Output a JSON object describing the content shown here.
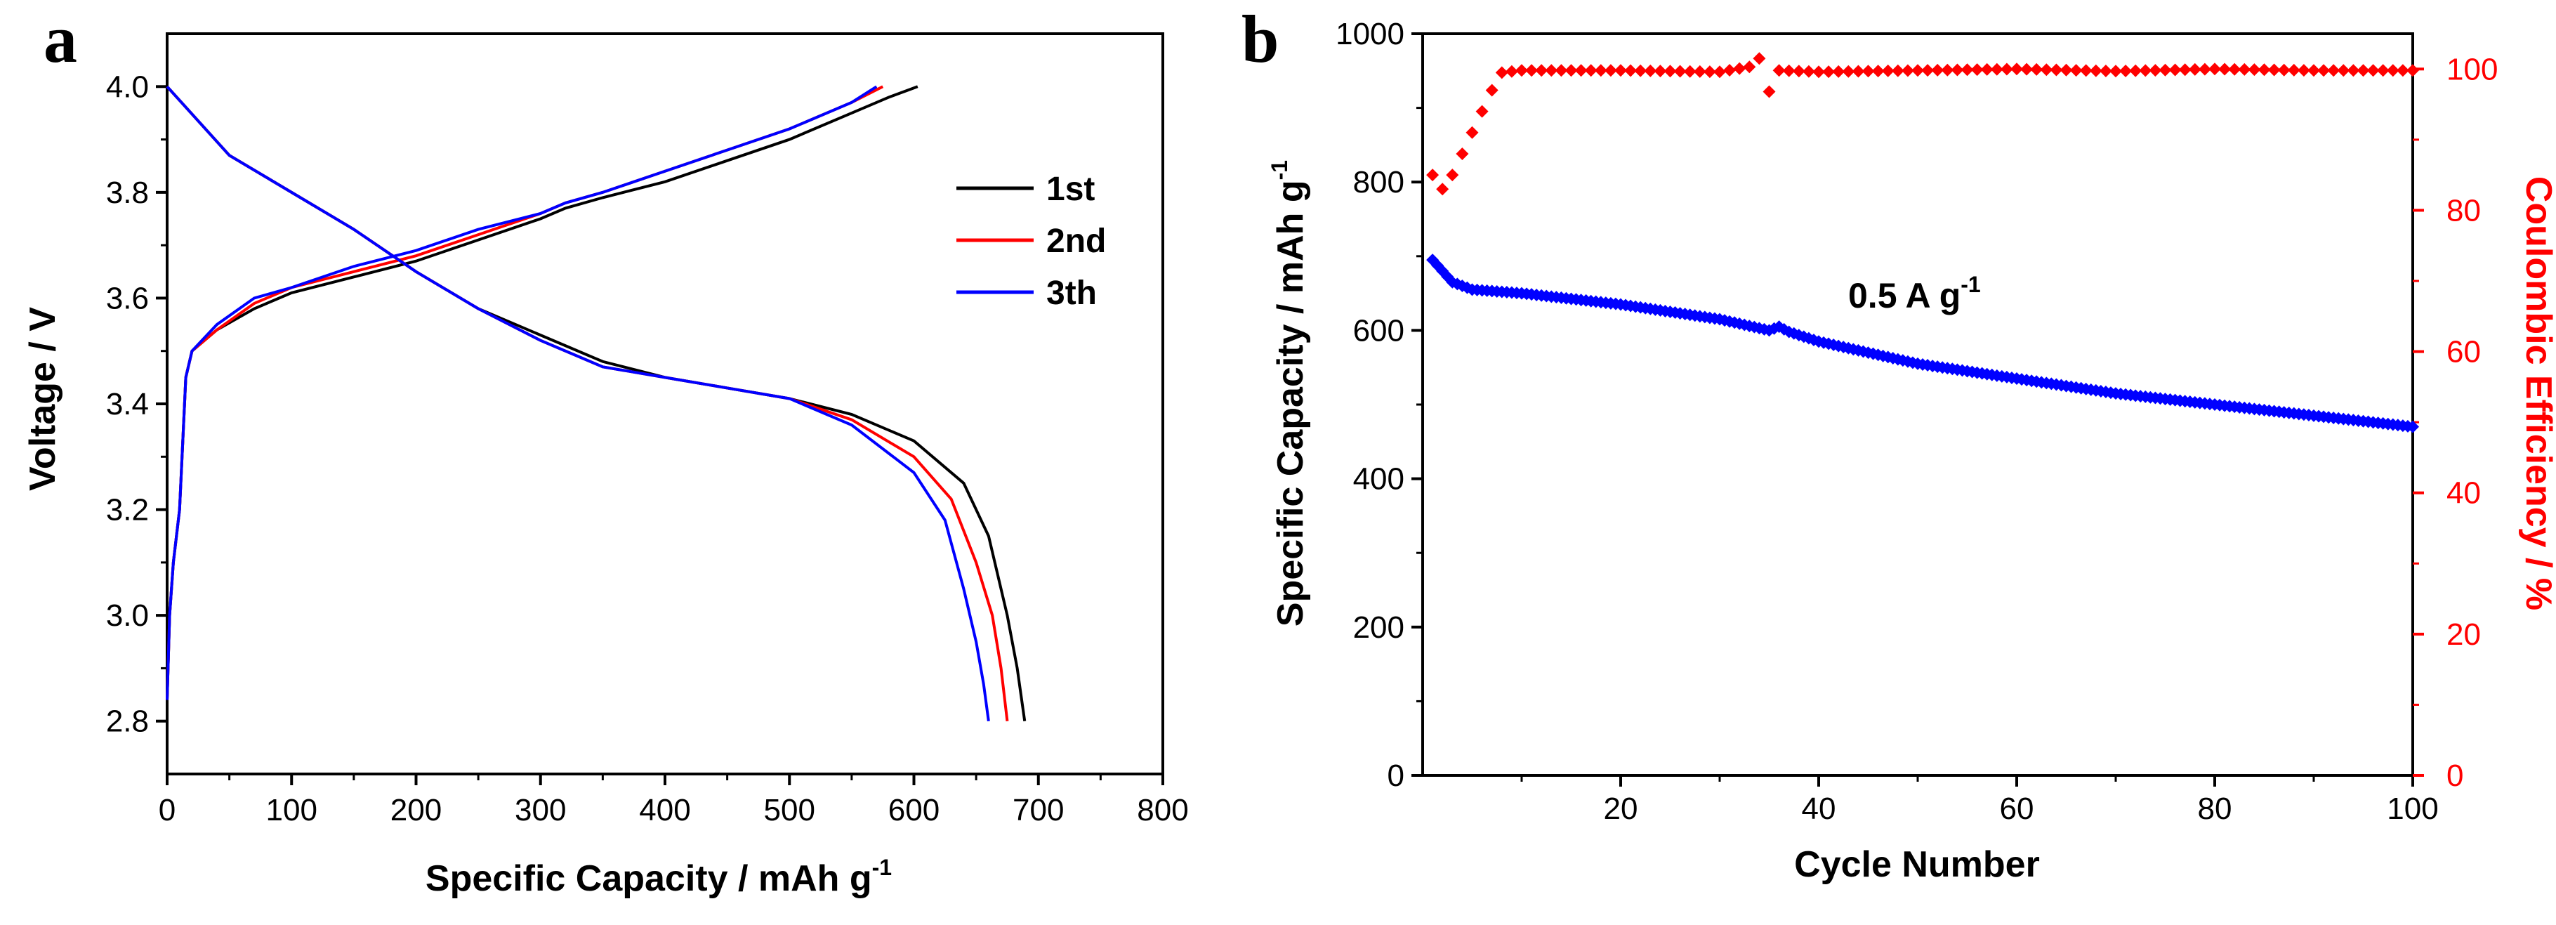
{
  "panel_a": {
    "label": "a",
    "chart_data": {
      "type": "line",
      "title": "",
      "xlabel": "Specific Capacity / mAh g",
      "xlabel_sup": "-1",
      "ylabel": "Voltage / V",
      "xlim": [
        0,
        800
      ],
      "ylim": [
        2.7,
        4.1
      ],
      "xticks": [
        "0",
        "100",
        "200",
        "300",
        "400",
        "500",
        "600",
        "700",
        "800"
      ],
      "yticks": [
        "2.8",
        "3.0",
        "3.2",
        "3.4",
        "3.6",
        "3.8",
        "4.0"
      ],
      "legend_position": "right-middle",
      "series": [
        {
          "name": "1st",
          "color": "#000000",
          "charge_x": [
            0,
            2,
            5,
            10,
            15,
            20,
            40,
            70,
            100,
            150,
            200,
            250,
            300,
            320,
            350,
            400,
            450,
            500,
            550,
            580,
            603
          ],
          "charge_y": [
            2.84,
            3.0,
            3.1,
            3.2,
            3.45,
            3.5,
            3.54,
            3.58,
            3.61,
            3.64,
            3.67,
            3.71,
            3.75,
            3.77,
            3.79,
            3.82,
            3.86,
            3.9,
            3.95,
            3.98,
            4.0
          ],
          "discharge_x": [
            0,
            50,
            100,
            150,
            200,
            250,
            300,
            350,
            400,
            450,
            500,
            550,
            600,
            640,
            660,
            675,
            683,
            689
          ],
          "discharge_y": [
            4.0,
            3.87,
            3.8,
            3.73,
            3.65,
            3.58,
            3.53,
            3.48,
            3.45,
            3.43,
            3.41,
            3.38,
            3.33,
            3.25,
            3.15,
            3.0,
            2.9,
            2.8
          ]
        },
        {
          "name": "2nd",
          "color": "#ff0000",
          "charge_x": [
            0,
            2,
            5,
            10,
            15,
            20,
            40,
            70,
            100,
            150,
            200,
            250,
            300,
            320,
            350,
            400,
            450,
            500,
            550,
            575
          ],
          "charge_y": [
            2.84,
            3.0,
            3.1,
            3.2,
            3.45,
            3.5,
            3.54,
            3.59,
            3.62,
            3.65,
            3.68,
            3.72,
            3.76,
            3.78,
            3.8,
            3.84,
            3.88,
            3.92,
            3.97,
            4.0
          ],
          "discharge_x": [
            0,
            50,
            100,
            150,
            200,
            250,
            300,
            350,
            400,
            450,
            500,
            550,
            600,
            630,
            650,
            663,
            670,
            675
          ],
          "discharge_y": [
            4.0,
            3.87,
            3.8,
            3.73,
            3.65,
            3.58,
            3.52,
            3.47,
            3.45,
            3.43,
            3.41,
            3.37,
            3.3,
            3.22,
            3.1,
            3.0,
            2.9,
            2.8
          ]
        },
        {
          "name": "3th",
          "color": "#0000ff",
          "charge_x": [
            0,
            2,
            5,
            10,
            15,
            20,
            40,
            70,
            100,
            150,
            200,
            250,
            300,
            320,
            350,
            400,
            450,
            500,
            550,
            570
          ],
          "charge_y": [
            2.84,
            3.0,
            3.1,
            3.2,
            3.45,
            3.5,
            3.55,
            3.6,
            3.62,
            3.66,
            3.69,
            3.73,
            3.76,
            3.78,
            3.8,
            3.84,
            3.88,
            3.92,
            3.97,
            4.0
          ],
          "discharge_x": [
            0,
            50,
            100,
            150,
            200,
            250,
            300,
            350,
            400,
            450,
            500,
            550,
            600,
            625,
            640,
            650,
            656,
            660
          ],
          "discharge_y": [
            4.0,
            3.87,
            3.8,
            3.73,
            3.65,
            3.58,
            3.52,
            3.47,
            3.45,
            3.43,
            3.41,
            3.36,
            3.27,
            3.18,
            3.05,
            2.95,
            2.87,
            2.8
          ]
        }
      ]
    }
  },
  "panel_b": {
    "label": "b",
    "chart_data": {
      "type": "scatter",
      "title": "",
      "xlabel": "Cycle Number",
      "ylabel": "Specific Capacity / mAh g",
      "ylabel_sup": "-1",
      "y2label": "Coulombic Efficiency / %",
      "annotation": "0.5 A g",
      "annotation_sup": "-1",
      "xlim": [
        0,
        100
      ],
      "ylim": [
        0,
        1000
      ],
      "y2lim": [
        0,
        105
      ],
      "xticks": [
        "20",
        "40",
        "60",
        "80",
        "100"
      ],
      "yticks": [
        "0",
        "200",
        "400",
        "600",
        "800",
        "1000"
      ],
      "y2ticks": [
        "0",
        "20",
        "40",
        "60",
        "80",
        "100"
      ],
      "capacity_color": "#0000ff",
      "efficiency_color": "#ff0000",
      "capacity": {
        "name": "Specific Capacity",
        "x": [
          1,
          2,
          3,
          5,
          10,
          20,
          30,
          35,
          36,
          37,
          40,
          50,
          60,
          70,
          80,
          90,
          100
        ],
        "y": [
          695,
          680,
          665,
          655,
          650,
          635,
          615,
          600,
          605,
          598,
          585,
          555,
          535,
          515,
          500,
          485,
          470
        ]
      },
      "efficiency": {
        "name": "Coulombic Efficiency",
        "x": [
          1,
          2,
          3,
          4,
          5,
          6,
          7,
          8,
          10,
          20,
          30,
          33,
          34,
          35,
          36,
          40,
          50,
          60,
          70,
          80,
          90,
          100
        ],
        "y": [
          85,
          83,
          85,
          88,
          91,
          94,
          97,
          99.5,
          99.8,
          99.8,
          99.6,
          100.3,
          101.5,
          96.8,
          99.8,
          99.6,
          99.8,
          100,
          99.7,
          100,
          99.8,
          99.8
        ]
      }
    }
  }
}
